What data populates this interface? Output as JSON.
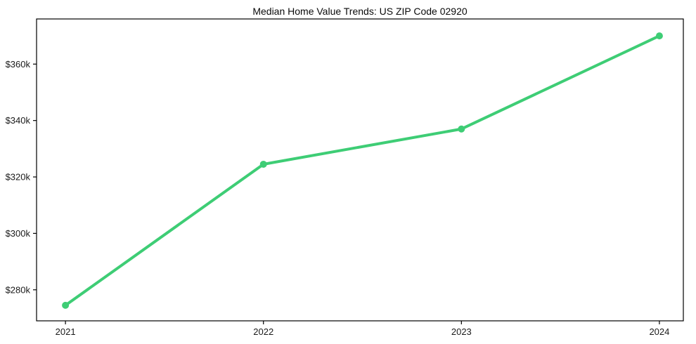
{
  "chart_data": {
    "type": "line",
    "title": "Median Home Value Trends: US ZIP Code 02920",
    "x": [
      2021,
      2022,
      2023,
      2024
    ],
    "x_tick_labels": [
      "2021",
      "2022",
      "2023",
      "2024"
    ],
    "series": [
      {
        "name": "Median Home Value",
        "values": [
          274500,
          324500,
          337000,
          370000
        ]
      }
    ],
    "y_ticks": [
      {
        "value": 280000,
        "label": "$280k"
      },
      {
        "value": 300000,
        "label": "$300k"
      },
      {
        "value": 320000,
        "label": "$320k"
      },
      {
        "value": 340000,
        "label": "$340k"
      },
      {
        "value": 360000,
        "label": "$360k"
      }
    ],
    "ylim": [
      269000,
      376000
    ],
    "xlim": [
      2020.854,
      2024.121
    ],
    "grid": false,
    "legend_position": "none",
    "line_color": "#3ecd75",
    "marker": "circle",
    "frame_color": "#000000",
    "background": "#ffffff"
  }
}
